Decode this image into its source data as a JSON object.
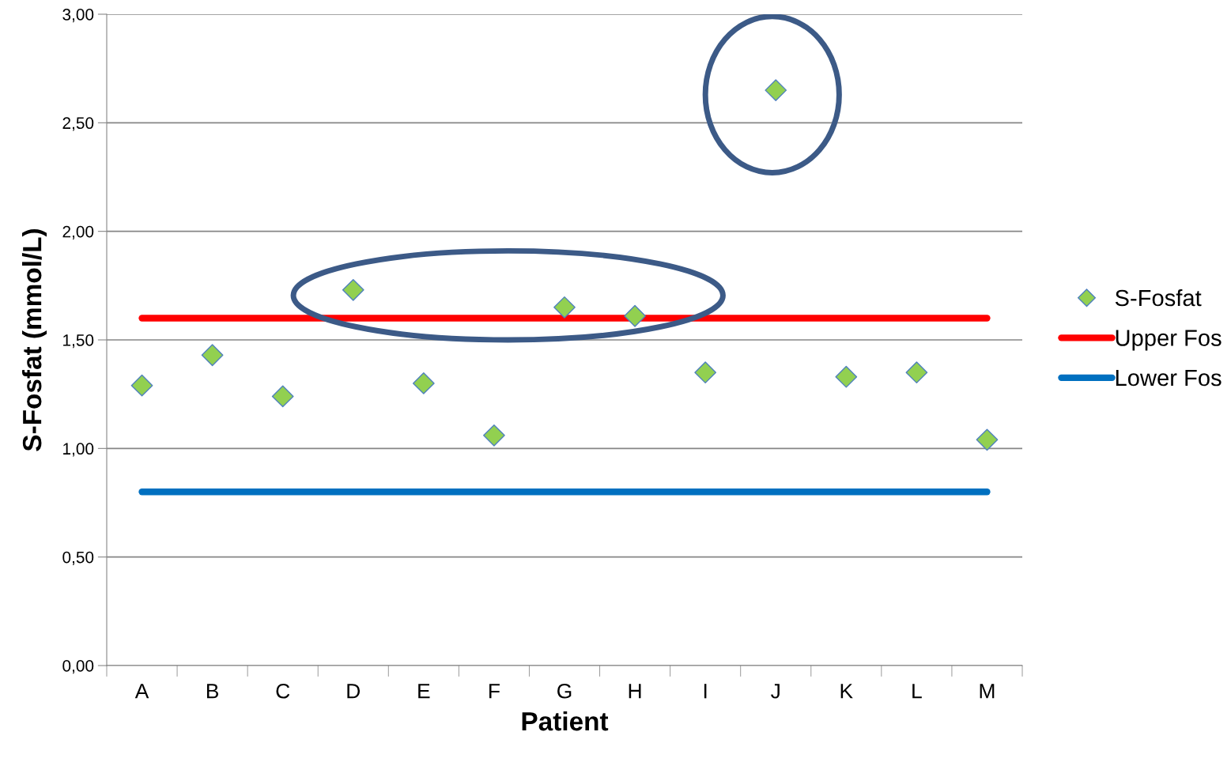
{
  "chart_data": {
    "type": "scatter",
    "xlabel": "Patient",
    "ylabel": "S-Fosfat (mmol/L)",
    "categories": [
      "A",
      "B",
      "C",
      "D",
      "E",
      "F",
      "G",
      "H",
      "I",
      "J",
      "K",
      "L",
      "M"
    ],
    "series": [
      {
        "name": "S-Fosfat",
        "color": "#92d050",
        "marker": "diamond",
        "values": [
          1.29,
          1.43,
          1.24,
          1.73,
          1.3,
          1.06,
          1.65,
          1.61,
          1.35,
          2.65,
          1.33,
          1.35,
          1.04
        ]
      },
      {
        "name": "Upper Fos",
        "type": "line",
        "color": "#ff0000",
        "marker": "none",
        "values": [
          1.6,
          1.6,
          1.6,
          1.6,
          1.6,
          1.6,
          1.6,
          1.6,
          1.6,
          1.6,
          1.6,
          1.6,
          1.6
        ]
      },
      {
        "name": "Lower Fos",
        "type": "line",
        "color": "#0070c0",
        "marker": "none",
        "values": [
          0.8,
          0.8,
          0.8,
          0.8,
          0.8,
          0.8,
          0.8,
          0.8,
          0.8,
          0.8,
          0.8,
          0.8,
          0.8
        ]
      }
    ],
    "ylim": [
      0,
      3
    ],
    "yticks": [
      {
        "value": 0,
        "label": "0,00"
      },
      {
        "value": 0.5,
        "label": "0,50"
      },
      {
        "value": 1,
        "label": "1,00"
      },
      {
        "value": 1.5,
        "label": "1,50"
      },
      {
        "value": 2,
        "label": "2,00"
      },
      {
        "value": 2.5,
        "label": "2,50"
      },
      {
        "value": 3,
        "label": "3,00"
      }
    ],
    "grid": "y",
    "legend": "right"
  }
}
